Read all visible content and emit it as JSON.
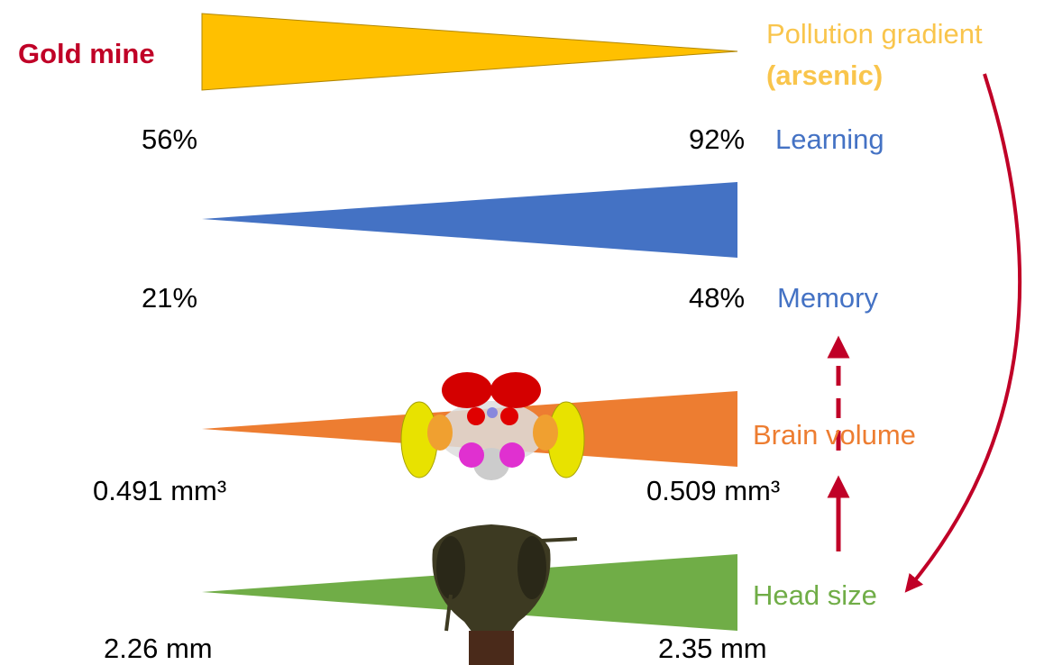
{
  "source": {
    "label": "Gold mine"
  },
  "gradient": {
    "label": "Pollution gradient",
    "detail": "(arsenic)"
  },
  "rows": [
    {
      "name": "Learning",
      "low": "56%",
      "high": "92%"
    },
    {
      "name": "Memory",
      "low": "21%",
      "high": "48%"
    },
    {
      "name": "Brain volume",
      "low": "0.491 mm³",
      "high": "0.509 mm³"
    },
    {
      "name": "Head size",
      "low": "2.26 mm",
      "high": "2.35 mm"
    }
  ]
}
